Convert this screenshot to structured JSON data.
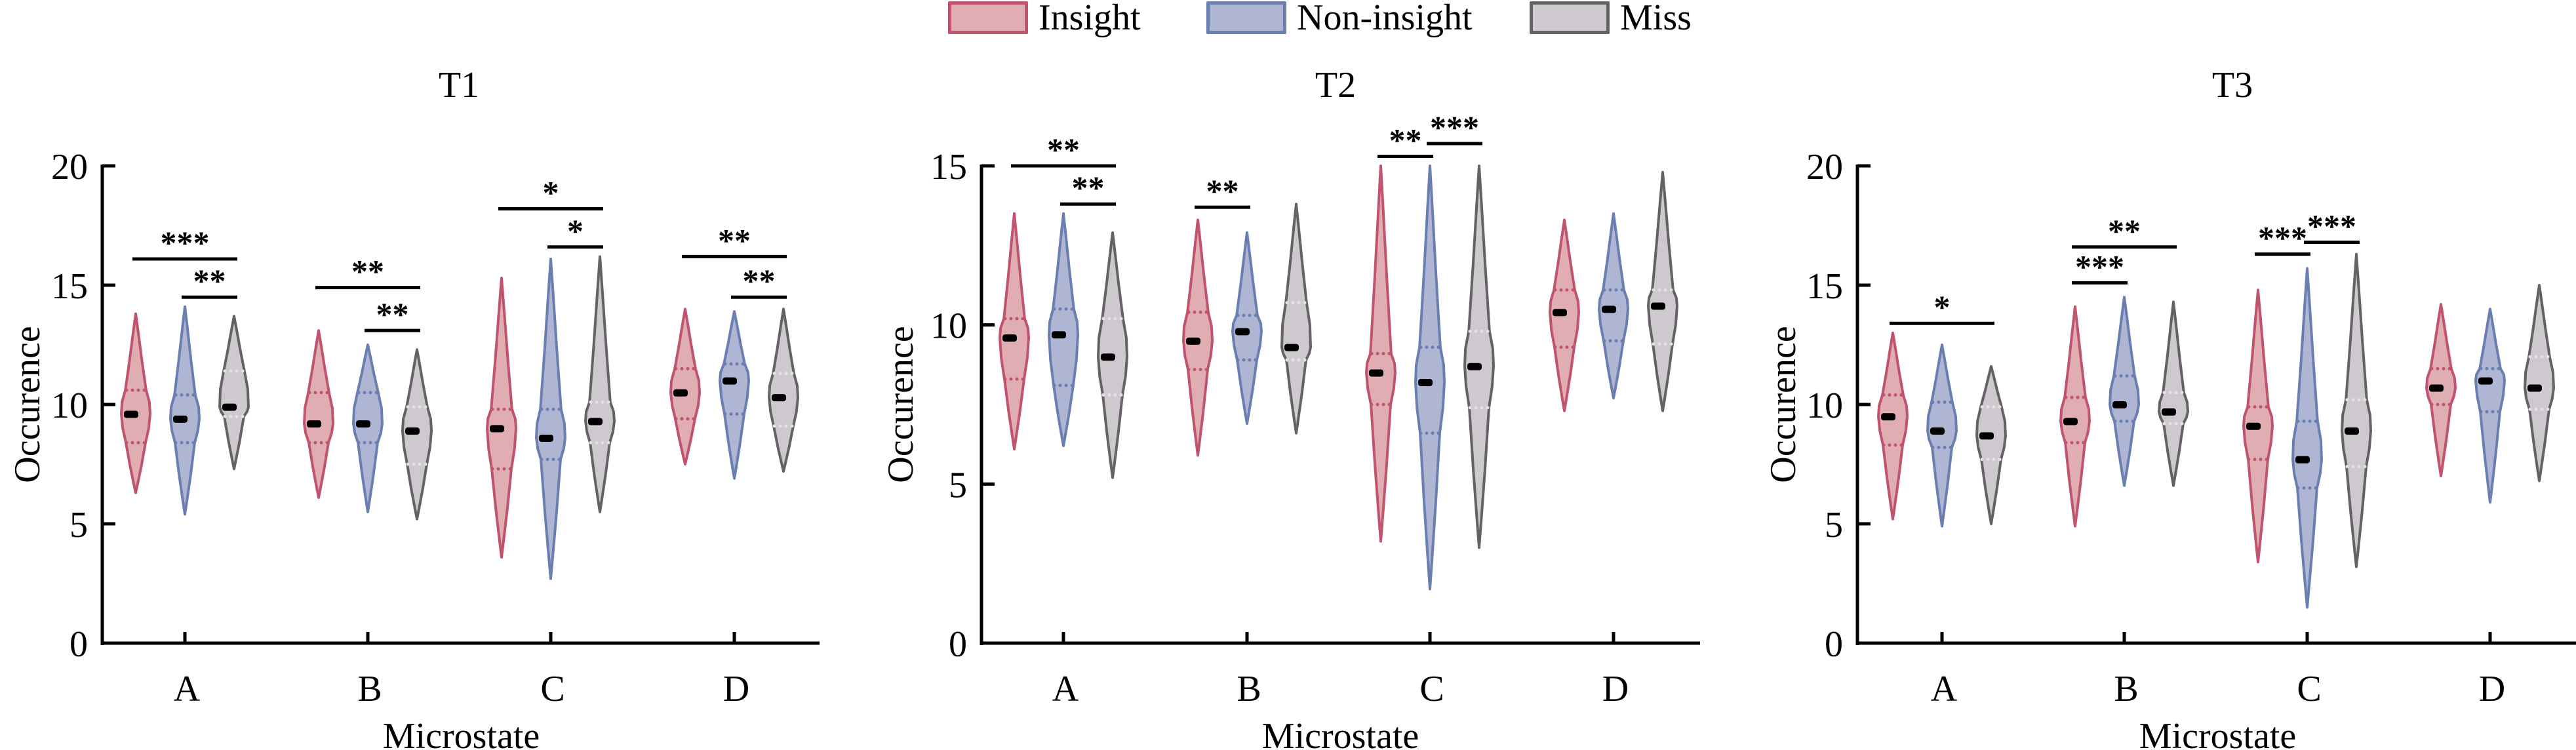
{
  "legend": {
    "items": [
      {
        "label": "Insight",
        "fill": "#e0adb2",
        "stroke": "#c0546e"
      },
      {
        "label": "Non-insight",
        "fill": "#afb6d4",
        "stroke": "#6a7fb0"
      },
      {
        "label": "Miss",
        "fill": "#cec9ce",
        "stroke": "#636363"
      }
    ]
  },
  "chart_data": [
    {
      "type": "violin",
      "title": "T1",
      "xlabel": "Microstate",
      "ylabel": "Occurence",
      "ylim": [
        0,
        20
      ],
      "yticks": [
        "0",
        "5",
        "10",
        "15",
        "20"
      ],
      "categories": [
        "A",
        "B",
        "C",
        "D"
      ],
      "series": [
        {
          "name": "Insight",
          "median": [
            9.6,
            9.2,
            9.0,
            10.5
          ],
          "q1": [
            8.4,
            8.4,
            7.3,
            9.4
          ],
          "q3": [
            10.6,
            10.5,
            9.8,
            11.5
          ],
          "min": [
            6.3,
            6.1,
            3.6,
            7.5
          ],
          "max": [
            13.8,
            13.1,
            15.3,
            14.0
          ]
        },
        {
          "name": "Non-insight",
          "median": [
            9.4,
            9.2,
            8.6,
            11.0
          ],
          "q1": [
            8.4,
            8.4,
            7.7,
            9.6
          ],
          "q3": [
            10.4,
            10.5,
            9.8,
            11.7
          ],
          "min": [
            5.4,
            5.5,
            2.7,
            6.9
          ],
          "max": [
            14.1,
            12.5,
            16.1,
            13.9
          ]
        },
        {
          "name": "Miss",
          "median": [
            9.9,
            8.9,
            9.3,
            10.3
          ],
          "q1": [
            9.5,
            7.5,
            8.4,
            9.1
          ],
          "q3": [
            11.4,
            9.9,
            10.1,
            11.3
          ],
          "min": [
            7.3,
            5.2,
            5.5,
            7.2
          ],
          "max": [
            13.7,
            12.3,
            16.2,
            14.0
          ]
        }
      ],
      "significance": [
        {
          "group": "A",
          "from": "Insight",
          "to": "Miss",
          "label": "***",
          "y": 16.1
        },
        {
          "group": "A",
          "from": "Non-insight",
          "to": "Miss",
          "label": "**",
          "y": 14.5
        },
        {
          "group": "B",
          "from": "Insight",
          "to": "Miss",
          "label": "**",
          "y": 14.9
        },
        {
          "group": "B",
          "from": "Non-insight",
          "to": "Miss",
          "label": "**",
          "y": 13.1
        },
        {
          "group": "C",
          "from": "Insight",
          "to": "Miss",
          "label": "*",
          "y": 18.2
        },
        {
          "group": "C",
          "from": "Non-insight",
          "to": "Miss",
          "label": "*",
          "y": 16.6
        },
        {
          "group": "D",
          "from": "Insight",
          "to": "Miss",
          "label": "**",
          "y": 16.2
        },
        {
          "group": "D",
          "from": "Non-insight",
          "to": "Miss",
          "label": "**",
          "y": 14.5
        }
      ]
    },
    {
      "type": "violin",
      "title": "T2",
      "xlabel": "Microstate",
      "ylabel": "Occurence",
      "ylim": [
        0,
        15
      ],
      "yticks": [
        "0",
        "5",
        "10",
        "15"
      ],
      "categories": [
        "A",
        "B",
        "C",
        "D"
      ],
      "series": [
        {
          "name": "Insight",
          "median": [
            9.6,
            9.5,
            8.5,
            10.4
          ],
          "q1": [
            8.3,
            8.6,
            7.5,
            9.3
          ],
          "q3": [
            10.2,
            10.4,
            9.1,
            11.1
          ],
          "min": [
            6.1,
            5.9,
            3.2,
            7.3
          ],
          "max": [
            13.5,
            13.3,
            15.0,
            13.3
          ]
        },
        {
          "name": "Non-insight",
          "median": [
            9.7,
            9.8,
            8.2,
            10.5
          ],
          "q1": [
            8.1,
            8.9,
            6.6,
            9.5
          ],
          "q3": [
            10.5,
            10.3,
            9.3,
            11.1
          ],
          "min": [
            6.2,
            6.9,
            1.7,
            7.7
          ],
          "max": [
            13.5,
            12.9,
            15.0,
            13.5
          ]
        },
        {
          "name": "Miss",
          "median": [
            9.0,
            9.3,
            8.7,
            10.6
          ],
          "q1": [
            7.8,
            8.9,
            7.4,
            9.4
          ],
          "q3": [
            10.2,
            10.7,
            9.8,
            11.1
          ],
          "min": [
            5.2,
            6.6,
            3.0,
            7.3
          ],
          "max": [
            12.9,
            13.8,
            15.0,
            14.8
          ]
        }
      ],
      "significance": [
        {
          "group": "A",
          "from": "Insight",
          "to": "Miss",
          "label": "**",
          "y": 15.0
        },
        {
          "group": "A",
          "from": "Non-insight",
          "to": "Miss",
          "label": "**",
          "y": 13.8
        },
        {
          "group": "B",
          "from": "Insight",
          "to": "Non-insight",
          "label": "**",
          "y": 13.7
        },
        {
          "group": "C",
          "from": "Insight",
          "to": "Non-insight",
          "label": "**",
          "y": 15.3
        },
        {
          "group": "C",
          "from": "Non-insight",
          "to": "Miss",
          "label": "***",
          "y": 15.7
        }
      ]
    },
    {
      "type": "violin",
      "title": "T3",
      "xlabel": "Microstate",
      "ylabel": "Occurence",
      "ylim": [
        0,
        20
      ],
      "yticks": [
        "0",
        "5",
        "10",
        "15",
        "20"
      ],
      "categories": [
        "A",
        "B",
        "C",
        "D"
      ],
      "series": [
        {
          "name": "Insight",
          "median": [
            9.5,
            9.3,
            9.1,
            10.7
          ],
          "q1": [
            8.3,
            8.4,
            7.7,
            10.0
          ],
          "q3": [
            10.4,
            10.3,
            9.9,
            11.5
          ],
          "min": [
            5.2,
            4.9,
            3.4,
            7.0
          ],
          "max": [
            13.0,
            14.1,
            14.8,
            14.2
          ]
        },
        {
          "name": "Non-insight",
          "median": [
            8.9,
            10.0,
            7.7,
            11.0
          ],
          "q1": [
            8.2,
            9.3,
            6.5,
            9.7
          ],
          "q3": [
            10.1,
            11.2,
            9.3,
            11.5
          ],
          "min": [
            4.9,
            6.6,
            1.5,
            5.9
          ],
          "max": [
            12.5,
            14.5,
            15.7,
            14.0
          ]
        },
        {
          "name": "Miss",
          "median": [
            8.7,
            9.7,
            8.9,
            10.7
          ],
          "q1": [
            7.7,
            9.2,
            7.4,
            9.8
          ],
          "q3": [
            9.9,
            10.5,
            10.2,
            12.0
          ],
          "min": [
            5.0,
            6.6,
            3.2,
            6.8
          ],
          "max": [
            11.6,
            14.3,
            16.3,
            15.0
          ]
        }
      ],
      "significance": [
        {
          "group": "A",
          "from": "Insight",
          "to": "Miss",
          "label": "*",
          "y": 13.4
        },
        {
          "group": "B",
          "from": "Insight",
          "to": "Miss",
          "label": "**",
          "y": 16.6
        },
        {
          "group": "B",
          "from": "Insight",
          "to": "Non-insight",
          "label": "***",
          "y": 15.1
        },
        {
          "group": "C",
          "from": "Insight",
          "to": "Non-insight",
          "label": "***",
          "y": 16.3
        },
        {
          "group": "C",
          "from": "Non-insight",
          "to": "Miss",
          "label": "***",
          "y": 16.8
        }
      ]
    }
  ]
}
